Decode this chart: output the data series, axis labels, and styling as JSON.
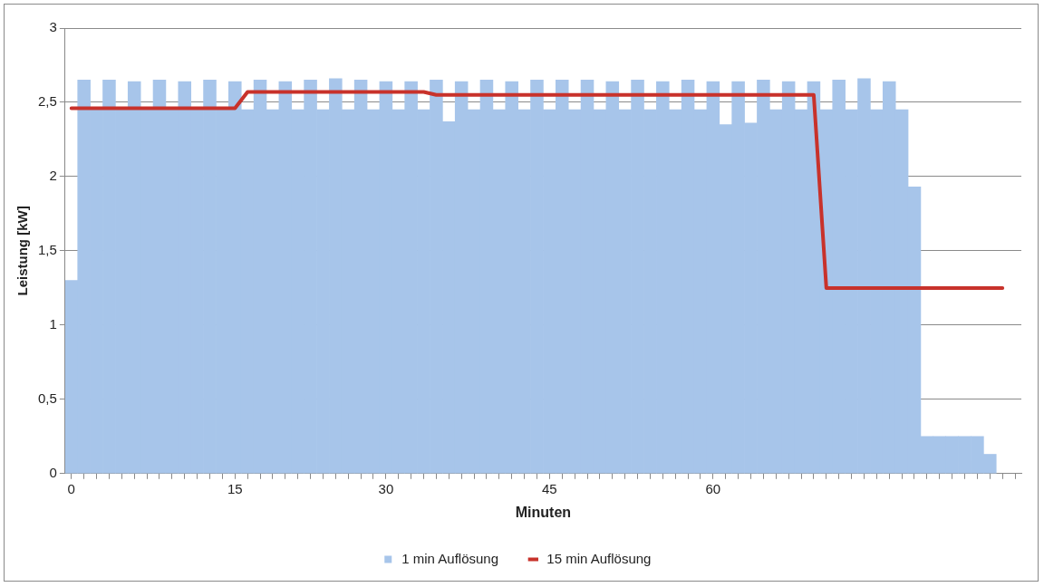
{
  "chart_data": {
    "type": "bar",
    "xlabel": "Minuten",
    "ylabel": "Leistung [kW]",
    "categories": [
      "0",
      null,
      null,
      null,
      null,
      null,
      null,
      null,
      null,
      null,
      null,
      null,
      null,
      "15",
      null,
      null,
      null,
      null,
      null,
      null,
      null,
      null,
      null,
      null,
      null,
      "30",
      null,
      null,
      null,
      null,
      null,
      null,
      null,
      null,
      null,
      null,
      null,
      null,
      "45",
      null,
      null,
      null,
      null,
      null,
      null,
      null,
      null,
      null,
      null,
      null,
      null,
      "60",
      null,
      null,
      null,
      null,
      null,
      null,
      null,
      null,
      null,
      null,
      null,
      null,
      null,
      null,
      null,
      null,
      null,
      null,
      null,
      null,
      null,
      null,
      null,
      null
    ],
    "series": [
      {
        "name": "1 min Auflösung",
        "color": "#a7c5ea",
        "values": [
          1.3,
          2.65,
          2.45,
          2.65,
          2.45,
          2.64,
          2.45,
          2.65,
          2.45,
          2.64,
          2.45,
          2.65,
          2.45,
          2.64,
          2.45,
          2.65,
          2.45,
          2.64,
          2.45,
          2.65,
          2.45,
          2.66,
          2.45,
          2.65,
          2.45,
          2.64,
          2.45,
          2.64,
          2.45,
          2.65,
          2.37,
          2.64,
          2.45,
          2.65,
          2.45,
          2.64,
          2.45,
          2.65,
          2.45,
          2.65,
          2.45,
          2.65,
          2.45,
          2.64,
          2.45,
          2.65,
          2.45,
          2.64,
          2.45,
          2.65,
          2.45,
          2.64,
          2.35,
          2.64,
          2.36,
          2.65,
          2.45,
          2.64,
          2.45,
          2.64,
          2.45,
          2.65,
          2.45,
          2.66,
          2.45,
          2.64,
          2.45,
          1.93,
          0.25,
          0.25,
          0.25,
          0.25,
          0.25,
          0.13,
          null,
          null
        ]
      },
      {
        "name": "15 min Auflösung",
        "type": "line",
        "color": "#c8322b",
        "values": [
          2.46,
          2.46,
          2.46,
          2.46,
          2.46,
          2.46,
          2.46,
          2.46,
          2.46,
          2.46,
          2.46,
          2.46,
          2.46,
          2.46,
          2.57,
          2.57,
          2.57,
          2.57,
          2.57,
          2.57,
          2.57,
          2.57,
          2.57,
          2.57,
          2.57,
          2.57,
          2.57,
          2.57,
          2.57,
          2.55,
          2.55,
          2.55,
          2.55,
          2.55,
          2.55,
          2.55,
          2.55,
          2.55,
          2.55,
          2.55,
          2.55,
          2.55,
          2.55,
          2.55,
          2.55,
          2.55,
          2.55,
          2.55,
          2.55,
          2.55,
          2.55,
          2.55,
          2.55,
          2.55,
          2.55,
          2.55,
          2.55,
          2.55,
          2.55,
          2.55,
          1.25,
          1.25,
          1.25,
          1.25,
          1.25,
          1.25,
          1.25,
          1.25,
          1.25,
          1.25,
          1.25,
          1.25,
          1.25,
          1.25,
          1.25,
          null
        ]
      }
    ],
    "ylim": [
      0,
      3
    ],
    "yticks": [
      0,
      {
        "value": 0.5,
        "label": "0,5"
      },
      1,
      {
        "value": 1.5,
        "label": "1,5"
      },
      2,
      {
        "value": 2.5,
        "label": "2,5"
      },
      3
    ],
    "grid": "y",
    "legend": "bottom",
    "marker": "none",
    "line_style": "solid"
  }
}
